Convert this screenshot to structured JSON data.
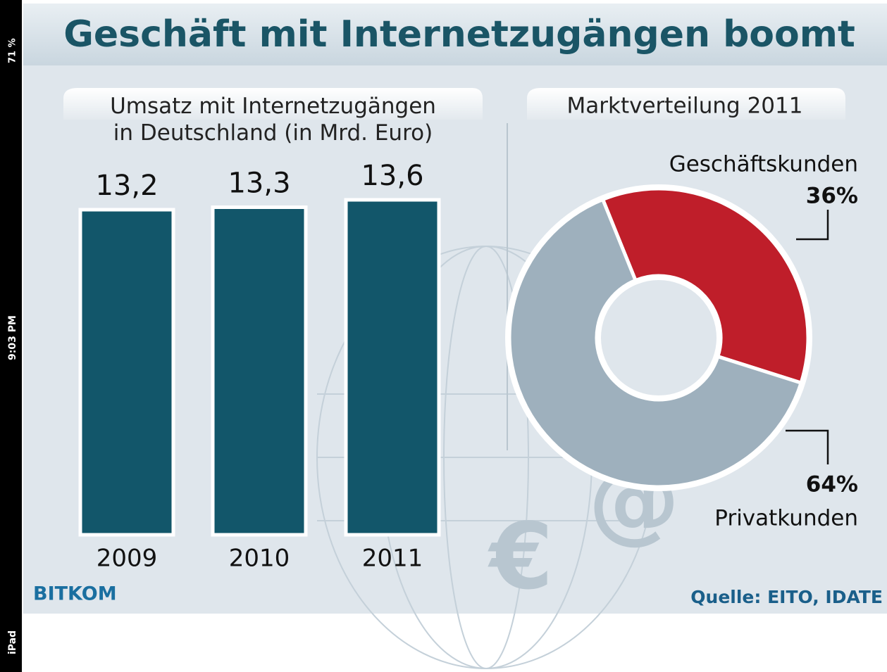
{
  "title": "Geschäft mit Internetzugängen boomt",
  "logo": "BITKOM",
  "source": "Quelle: EITO, IDATE",
  "status_bar": {
    "device": "iPad",
    "time": "9:03 PM",
    "battery": "71 %"
  },
  "chart_data": [
    {
      "type": "bar",
      "title": "Umsatz mit Internetzugängen\nin Deutschland (in Mrd. Euro)",
      "categories": [
        "2009",
        "2010",
        "2011"
      ],
      "values": [
        13.2,
        13.3,
        13.6
      ],
      "value_labels": [
        "13,2",
        "13,3",
        "13,6"
      ],
      "color": "#12566a"
    },
    {
      "type": "pie",
      "title": "Marktverteilung 2011",
      "categories": [
        "Geschäftskunden",
        "Privatkunden"
      ],
      "values": [
        36,
        64
      ],
      "value_labels": [
        "36%",
        "64%"
      ],
      "colors": [
        "#bf1e2a",
        "#9eb0bd"
      ]
    }
  ]
}
